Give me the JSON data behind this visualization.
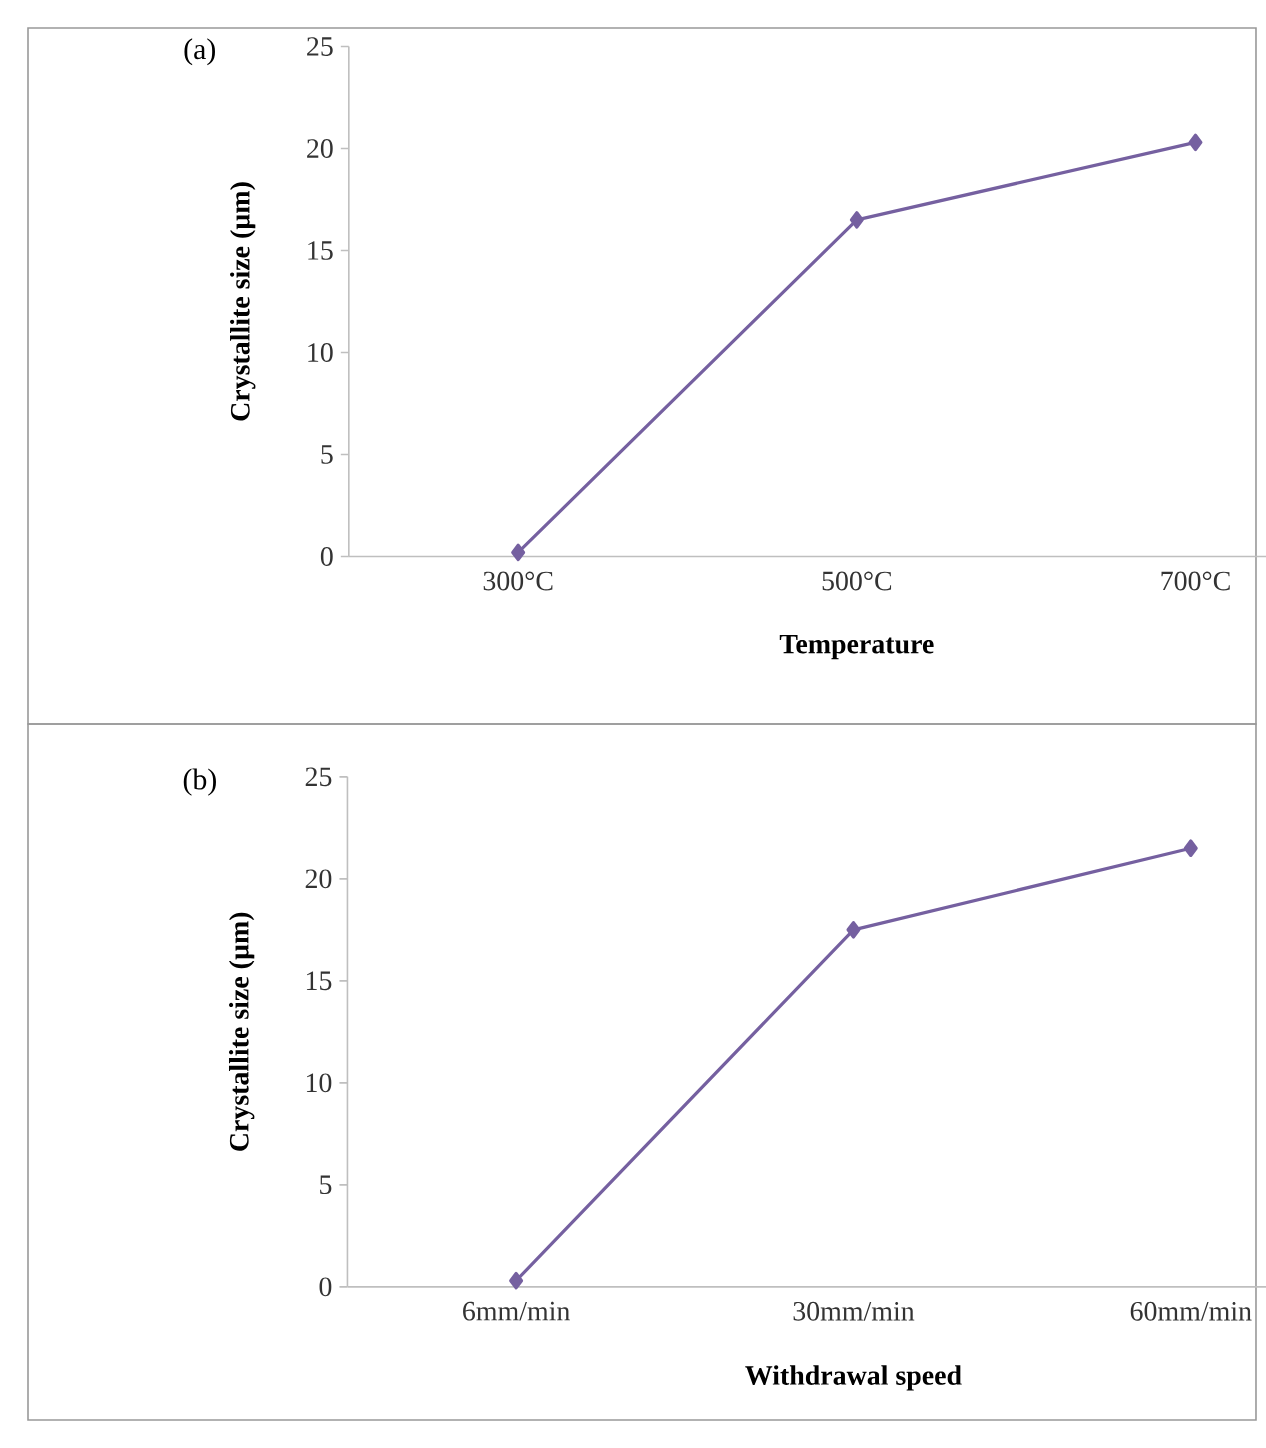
{
  "chart_data": [
    {
      "type": "line",
      "categories": [
        "300°C",
        "500°C",
        "700°C"
      ],
      "values": [
        0.2,
        16.5,
        20.3
      ],
      "color": "#7560a0",
      "marker": "diamond",
      "xlabel": "Temperature",
      "ylabel": "Crystallite size (µm)",
      "ylim": [
        0,
        25
      ],
      "yticks": [
        0,
        5,
        10,
        15,
        20,
        25
      ],
      "annotations": [
        "(a)"
      ]
    },
    {
      "type": "line",
      "categories": [
        "6mm/min",
        "30mm/min",
        "60mm/min"
      ],
      "values": [
        0.3,
        17.5,
        21.5
      ],
      "color": "#7560a0",
      "marker": "diamond",
      "xlabel": "Withdrawal speed",
      "ylabel": "Crystallite size (µm)",
      "ylim": [
        0,
        25
      ],
      "yticks": [
        0,
        5,
        10,
        15,
        20,
        25
      ],
      "annotations": [
        "(b)"
      ]
    }
  ]
}
